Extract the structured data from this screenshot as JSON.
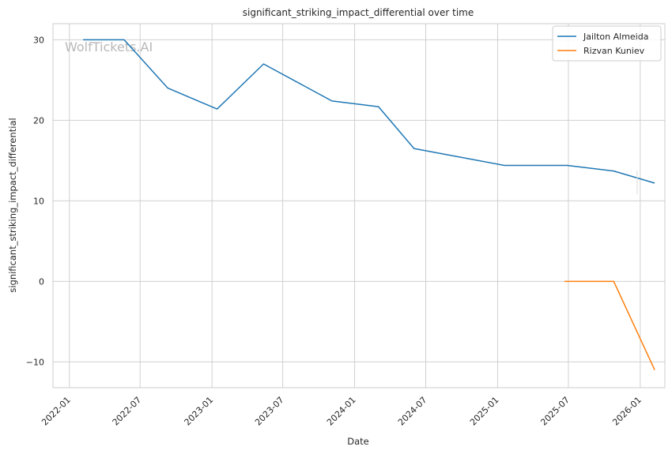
{
  "chart_data": {
    "type": "line",
    "title": "significant_striking_impact_differential over time",
    "xlabel": "Date",
    "ylabel": "significant_striking_impact_differential",
    "x_ticks": [
      "2022-01",
      "2022-07",
      "2023-01",
      "2023-07",
      "2024-01",
      "2024-07",
      "2025-01",
      "2025-07",
      "2026-01"
    ],
    "y_ticks": [
      -10,
      0,
      10,
      20,
      30
    ],
    "xlim": [
      "2021-11-20",
      "2026-03-05"
    ],
    "ylim": [
      -13.2,
      32.0
    ],
    "grid": true,
    "legend_position": "top-right",
    "watermark": "WolfTickets.AI",
    "series": [
      {
        "name": "Jailton Almeida",
        "color": "#1f77b4",
        "points": [
          {
            "x": "2022-02-05",
            "y": 30.0
          },
          {
            "x": "2022-05-21",
            "y": 30.0
          },
          {
            "x": "2022-09-10",
            "y": 24.0
          },
          {
            "x": "2023-01-14",
            "y": 21.4
          },
          {
            "x": "2023-05-13",
            "y": 27.0
          },
          {
            "x": "2023-11-04",
            "y": 22.4
          },
          {
            "x": "2024-03-02",
            "y": 21.7
          },
          {
            "x": "2024-06-01",
            "y": 16.5
          },
          {
            "x": "2025-01-18",
            "y": 14.4
          },
          {
            "x": "2025-06-28",
            "y": 14.4
          },
          {
            "x": "2025-10-25",
            "y": 13.7
          },
          {
            "x": "2026-02-07",
            "y": 12.2
          }
        ]
      },
      {
        "name": "Rizvan Kuniev",
        "color": "#ff7f0e",
        "points": [
          {
            "x": "2025-06-21",
            "y": 0.0
          },
          {
            "x": "2025-10-25",
            "y": 0.0
          },
          {
            "x": "2026-02-07",
            "y": -11.0
          }
        ]
      }
    ]
  }
}
